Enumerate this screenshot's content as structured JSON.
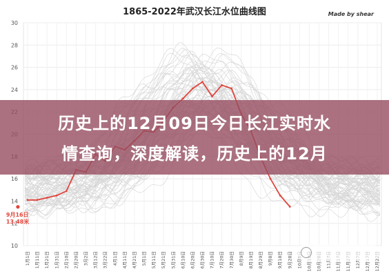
{
  "chart_data": {
    "type": "line",
    "title": "1865-2022年武汉长江水位曲线图",
    "credit": "Made by shear",
    "xlabel": "",
    "ylabel": "",
    "ylim": [
      10,
      30
    ],
    "yticks": [
      10,
      12,
      14,
      16,
      18,
      20,
      22,
      24,
      26,
      28,
      30
    ],
    "xticks": [
      "1月1日",
      "1月11日",
      "1月21日",
      "1月31日",
      "2月10日",
      "2月20日",
      "3月2日",
      "3月12日",
      "3月22日",
      "4月1日",
      "4月11日",
      "4月21日",
      "5月1日",
      "5月11日",
      "5月21日",
      "5月31日",
      "6月10日",
      "6月20日",
      "6月30日",
      "7月10日",
      "7月20日",
      "7月30日",
      "8月9日",
      "8月19日",
      "8月29日",
      "9月8日",
      "9月18日",
      "9月28日",
      "10月8日",
      "10月18日",
      "10月28日",
      "11月7日",
      "11月17日",
      "11月27日",
      "12月7日",
      "12月17日",
      "12月27日"
    ],
    "grid": true,
    "legend": "none",
    "colors": {
      "history": "#b9b9b9",
      "highlight": "#e0453c"
    },
    "series": [
      {
        "values_by_xtick": [
          14.1,
          14.1,
          14.3,
          14.5,
          14.9,
          16.8,
          16.6,
          18.2,
          17.6,
          18.9,
          18.6,
          19.4,
          20.3,
          20.2,
          21.2,
          22.4,
          23.2,
          24.1,
          24.7,
          23.4,
          24.4,
          24.1,
          21.8,
          20.3,
          17.9,
          16.0,
          14.5,
          13.5
        ]
      }
    ],
    "annotation": {
      "x": "9月16日",
      "y": 13.48,
      "lines": [
        "9月16日",
        "13.48米"
      ]
    }
  },
  "banner": {
    "line1": "历史上的12月09日今日长江实时水",
    "line2": "情查询，深度解读，历史上的12月"
  },
  "watermark": {
    "text": ""
  }
}
